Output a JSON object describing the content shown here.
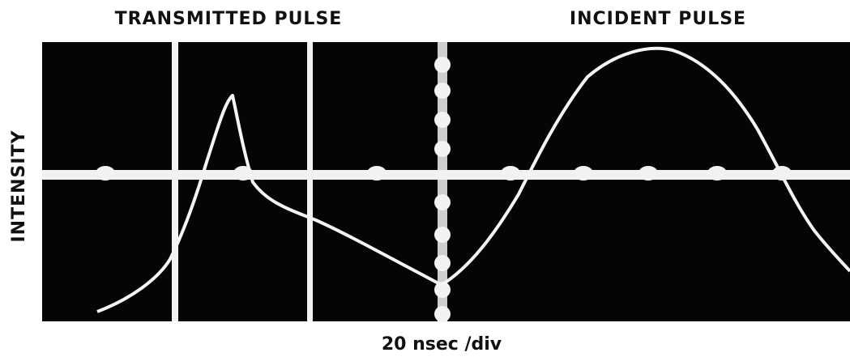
{
  "labels": {
    "transmitted": "TRANSMITTED  PULSE",
    "incident": "INCIDENT  PULSE",
    "y_axis": "INTENSITY",
    "time_scale": "20 nsec /div"
  }
}
